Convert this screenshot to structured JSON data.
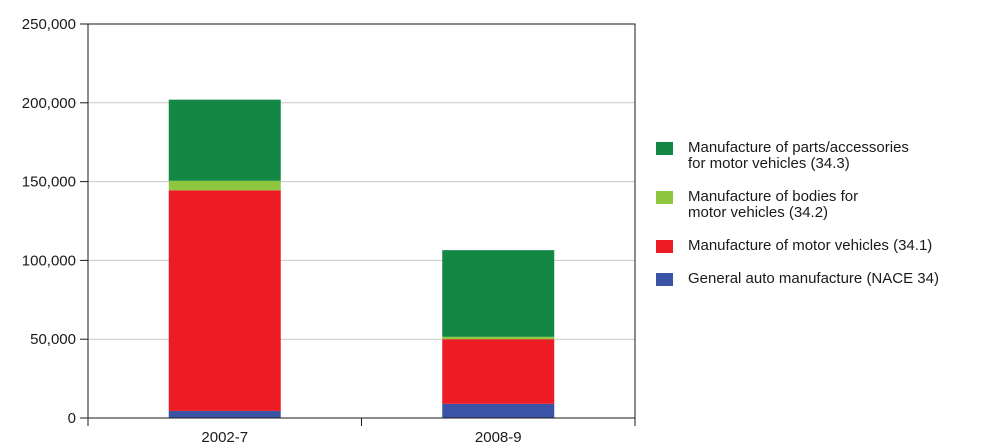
{
  "chart_data": {
    "type": "bar",
    "stacked": true,
    "categories": [
      "2002-7",
      "2008-9"
    ],
    "series": [
      {
        "name": "General auto manufacture (NACE 34)",
        "color": "#3a53a4",
        "values": [
          4500,
          9000
        ]
      },
      {
        "name": "Manufacture of motor vehicles (34.1)",
        "color": "#ed1c24",
        "values": [
          140000,
          41000
        ]
      },
      {
        "name": "Manufacture of bodies for motor vehicles (34.2)",
        "color": "#8dc63f",
        "values": [
          6000,
          1500
        ]
      },
      {
        "name": "Manufacture of parts/accessories for motor vehicles (34.3)",
        "color": "#138744",
        "values": [
          51500,
          55000
        ]
      }
    ],
    "ylim": [
      0,
      250000
    ],
    "yticks": [
      0,
      50000,
      100000,
      150000,
      200000,
      250000
    ],
    "ytick_labels": [
      "0",
      "50,000",
      "100,000",
      "150,000",
      "200,000",
      "250,000"
    ],
    "grid": true,
    "legend_position": "right",
    "legend_order": [
      3,
      2,
      1,
      0
    ],
    "legend_labels": [
      "Manufacture of parts/accessories\nfor motor vehicles (34.3)",
      "Manufacture of bodies for\nmotor vehicles (34.2)",
      "Manufacture of motor vehicles (34.1)",
      "General auto manufacture (NACE 34)"
    ]
  }
}
